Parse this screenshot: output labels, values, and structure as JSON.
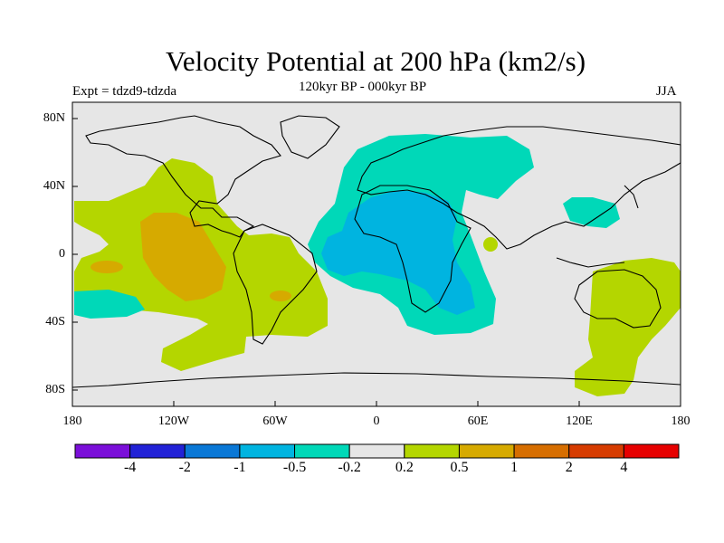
{
  "title": "Velocity Potential at 200 hPa (km2/s)",
  "subtitle": "120kyr BP - 000kyr BP",
  "experiment": "Expt = tdzd9-tdzda",
  "season": "JJA",
  "lat_labels": [
    "80N",
    "40N",
    "0",
    "40S",
    "80S"
  ],
  "lon_labels": [
    "180",
    "120W",
    "60W",
    "0",
    "60E",
    "120E",
    "180"
  ],
  "colorbar": {
    "colors": [
      "#7b0fd9",
      "#2222d6",
      "#0a78d6",
      "#00b4e0",
      "#00d8b8",
      "#e6e6e6",
      "#b4d600",
      "#d6aa00",
      "#d66e00",
      "#d63c00",
      "#e60000"
    ],
    "labels": [
      "-4",
      "-2",
      "-1",
      "-0.5",
      "-0.2",
      "0.2",
      "0.5",
      "1",
      "2",
      "4"
    ]
  },
  "colors": {
    "background": "#e6e6e6",
    "positive_weak": "#b4d600",
    "positive_mid": "#d6aa00",
    "positive_strong": "#d66e00",
    "negative_weak": "#00d8b8",
    "negative_mid": "#00b4e0"
  }
}
